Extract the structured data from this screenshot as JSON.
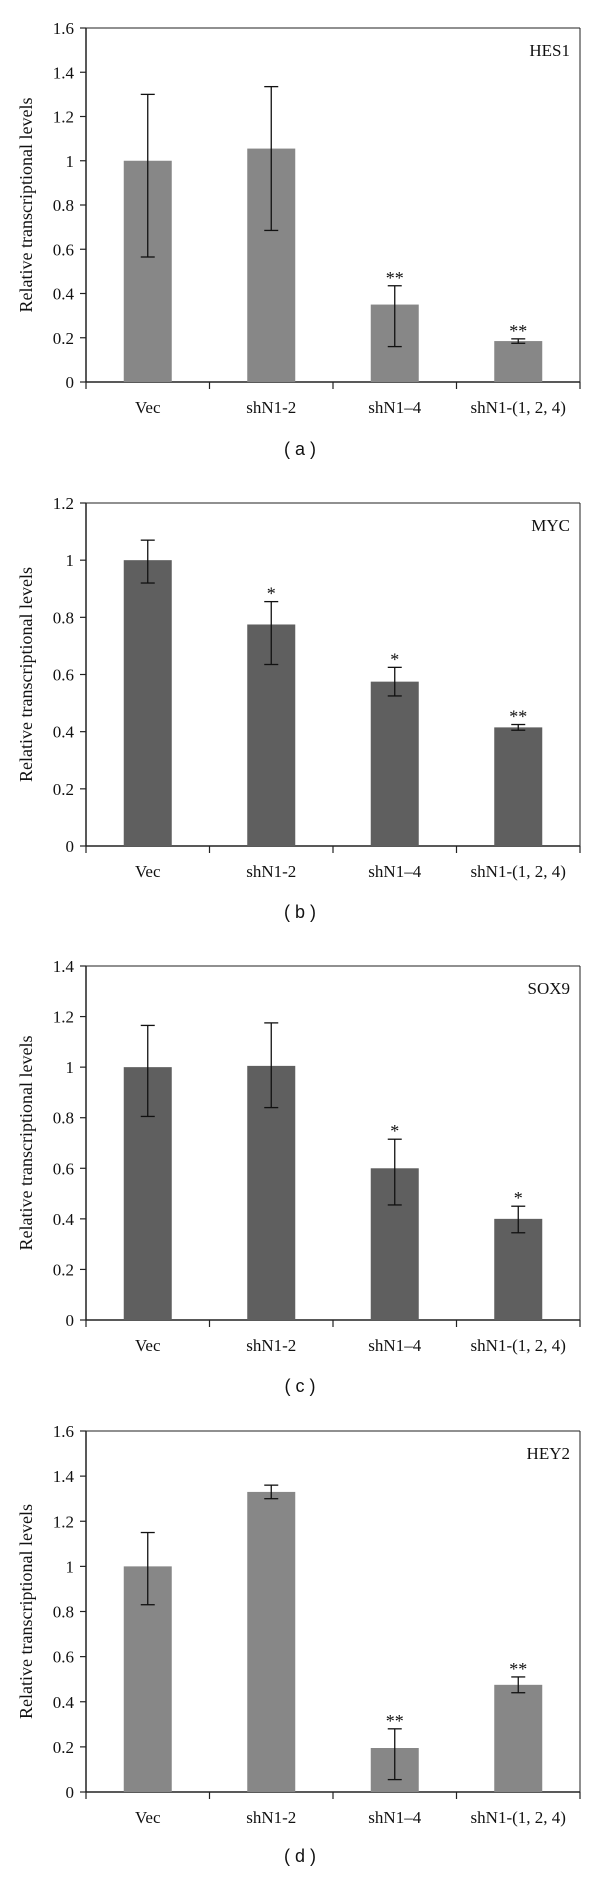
{
  "chart_data": [
    {
      "type": "bar",
      "title": "HES1",
      "panel_label": "( a )",
      "ylabel": "Relative transcriptional levels",
      "xlabel": "",
      "categories": [
        "Vec",
        "shN1-2",
        "shN1–4",
        "shN1-(1, 2, 4)"
      ],
      "values": [
        1.0,
        1.055,
        0.35,
        0.185
      ],
      "errors": [
        [
          0.435,
          0.3
        ],
        [
          0.37,
          0.28
        ],
        [
          0.19,
          0.085
        ],
        [
          0.01,
          0.01
        ]
      ],
      "significance": [
        "",
        "",
        "**",
        "**"
      ],
      "ylim": [
        0,
        1.6
      ],
      "yticks": [
        0,
        0.2,
        0.4,
        0.6,
        0.8,
        1,
        1.2,
        1.4,
        1.6
      ],
      "ytick_labels": [
        "0",
        "0.2",
        "0.4",
        "0.6",
        "0.8",
        "1",
        "1.2",
        "1.4",
        "1.6"
      ],
      "bar_color": "#878787",
      "grid": false
    },
    {
      "type": "bar",
      "title": "MYC",
      "panel_label": "( b )",
      "ylabel": "Relative transcriptional levels",
      "xlabel": "",
      "categories": [
        "Vec",
        "shN1-2",
        "shN1–4",
        "shN1-(1, 2, 4)"
      ],
      "values": [
        1.0,
        0.775,
        0.575,
        0.415
      ],
      "errors": [
        [
          0.08,
          0.07
        ],
        [
          0.14,
          0.08
        ],
        [
          0.05,
          0.05
        ],
        [
          0.01,
          0.01
        ]
      ],
      "significance": [
        "",
        "*",
        "*",
        "**"
      ],
      "ylim": [
        0,
        1.2
      ],
      "yticks": [
        0,
        0.2,
        0.4,
        0.6,
        0.8,
        1,
        1.2
      ],
      "ytick_labels": [
        "0",
        "0.2",
        "0.4",
        "0.6",
        "0.8",
        "1",
        "1.2"
      ],
      "bar_color": "#5f5f5f",
      "grid": false
    },
    {
      "type": "bar",
      "title": "SOX9",
      "panel_label": "( c )",
      "ylabel": "Relative transcriptional levels",
      "xlabel": "",
      "categories": [
        "Vec",
        "shN1-2",
        "shN1–4",
        "shN1-(1, 2, 4)"
      ],
      "values": [
        1.0,
        1.005,
        0.6,
        0.4
      ],
      "errors": [
        [
          0.195,
          0.165
        ],
        [
          0.165,
          0.17
        ],
        [
          0.145,
          0.115
        ],
        [
          0.055,
          0.05
        ]
      ],
      "significance": [
        "",
        "",
        "*",
        "*"
      ],
      "ylim": [
        0,
        1.4
      ],
      "yticks": [
        0,
        0.2,
        0.4,
        0.6,
        0.8,
        1,
        1.2,
        1.4
      ],
      "ytick_labels": [
        "0",
        "0.2",
        "0.4",
        "0.6",
        "0.8",
        "1",
        "1.2",
        "1.4"
      ],
      "bar_color": "#5f5f5f",
      "grid": false
    },
    {
      "type": "bar",
      "title": "HEY2",
      "panel_label": "( d )",
      "ylabel": "Relative transcriptional levels",
      "xlabel": "",
      "categories": [
        "Vec",
        "shN1-2",
        "shN1–4",
        "shN1-(1, 2, 4)"
      ],
      "values": [
        1.0,
        1.33,
        0.195,
        0.475
      ],
      "errors": [
        [
          0.17,
          0.15
        ],
        [
          0.03,
          0.03
        ],
        [
          0.14,
          0.085
        ],
        [
          0.035,
          0.035
        ]
      ],
      "significance": [
        "",
        "",
        "**",
        "**"
      ],
      "ylim": [
        0,
        1.6
      ],
      "yticks": [
        0,
        0.2,
        0.4,
        0.6,
        0.8,
        1,
        1.2,
        1.4,
        1.6
      ],
      "ytick_labels": [
        "0",
        "0.2",
        "0.4",
        "0.6",
        "0.8",
        "1",
        "1.2",
        "1.4",
        "1.6"
      ],
      "bar_color": "#878787",
      "grid": false
    }
  ]
}
